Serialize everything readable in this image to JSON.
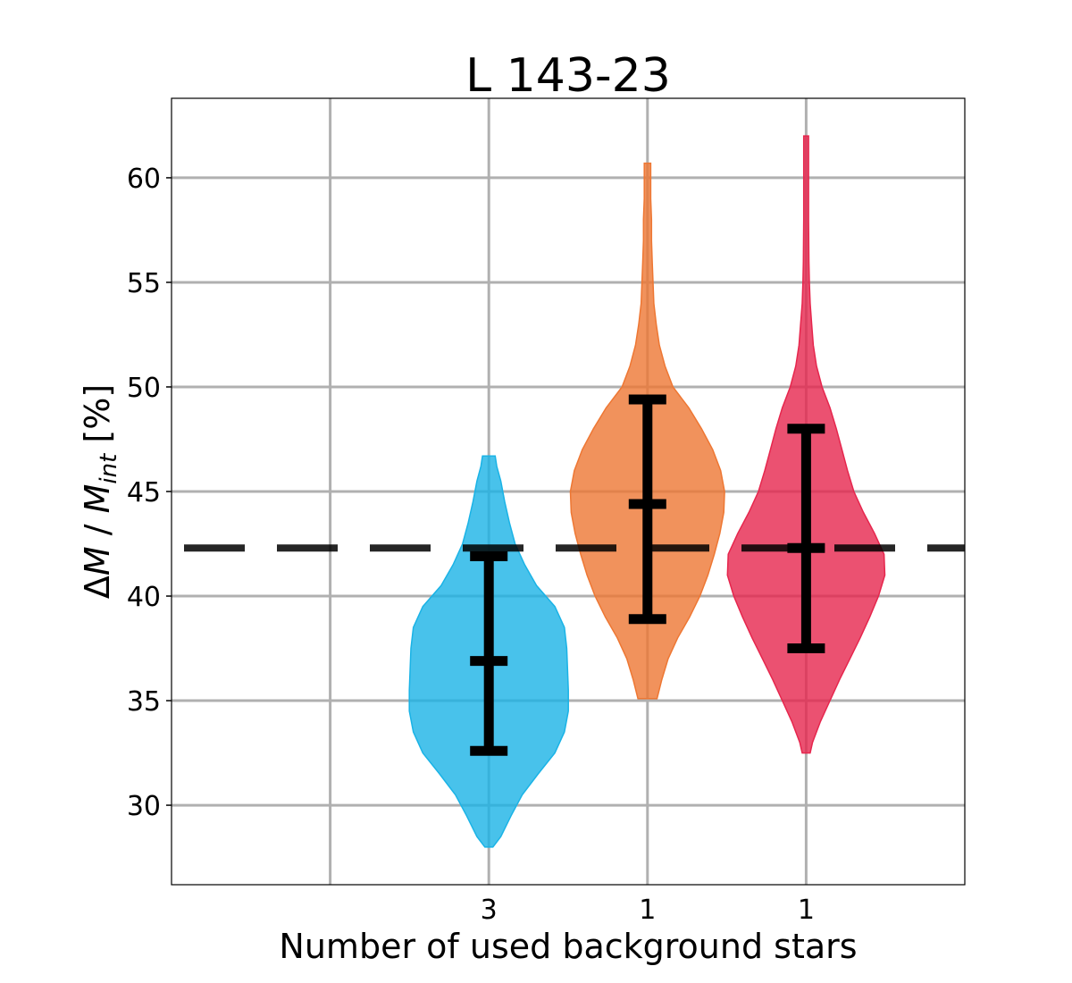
{
  "chart_data": {
    "type": "violin",
    "title": "L 143-23",
    "xlabel": "Number of used background stars",
    "ylabel": {
      "delta": "Δ",
      "M1": "M",
      "slash": " / ",
      "M2": "M",
      "sub": "int",
      "unit": " [%]"
    },
    "ylim": [
      26.2,
      63.8
    ],
    "yticks": [
      30,
      35,
      40,
      45,
      50,
      55,
      60
    ],
    "x_gridlines": [
      1,
      3,
      4
    ],
    "xlim": [
      0,
      5
    ],
    "grid": true,
    "reference_line": {
      "y": 42.3,
      "style": "dashed",
      "color": "#000000"
    },
    "violins": [
      {
        "x": 2,
        "tick_label": "3",
        "color": "#1ab3e6",
        "min": 28.0,
        "max": 46.7,
        "q_low": 32.6,
        "median": 36.9,
        "q_high": 41.9,
        "profile": [
          [
            28.0,
            0.05
          ],
          [
            28.5,
            0.15
          ],
          [
            29.5,
            0.28
          ],
          [
            30.5,
            0.42
          ],
          [
            31.5,
            0.62
          ],
          [
            32.5,
            0.83
          ],
          [
            33.5,
            0.95
          ],
          [
            34.5,
            1.0
          ],
          [
            35.5,
            1.0
          ],
          [
            36.5,
            0.99
          ],
          [
            37.5,
            0.98
          ],
          [
            38.5,
            0.95
          ],
          [
            39.5,
            0.83
          ],
          [
            40.5,
            0.6
          ],
          [
            41.5,
            0.45
          ],
          [
            42.5,
            0.33
          ],
          [
            43.5,
            0.26
          ],
          [
            44.5,
            0.2
          ],
          [
            45.5,
            0.15
          ],
          [
            46.2,
            0.1
          ],
          [
            46.7,
            0.08
          ]
        ]
      },
      {
        "x": 3,
        "tick_label": "1",
        "color": "#ee7733",
        "min": 35.1,
        "max": 60.7,
        "q_low": 38.9,
        "median": 44.4,
        "q_high": 49.4,
        "profile": [
          [
            35.1,
            0.12
          ],
          [
            36.0,
            0.18
          ],
          [
            37.0,
            0.26
          ],
          [
            38.0,
            0.38
          ],
          [
            39.0,
            0.53
          ],
          [
            40.0,
            0.66
          ],
          [
            41.0,
            0.76
          ],
          [
            42.0,
            0.84
          ],
          [
            43.0,
            0.91
          ],
          [
            44.0,
            0.96
          ],
          [
            45.0,
            0.97
          ],
          [
            46.0,
            0.92
          ],
          [
            47.0,
            0.82
          ],
          [
            48.0,
            0.68
          ],
          [
            49.0,
            0.52
          ],
          [
            50.0,
            0.32
          ],
          [
            51.0,
            0.22
          ],
          [
            52.0,
            0.15
          ],
          [
            53.0,
            0.11
          ],
          [
            54.0,
            0.08
          ],
          [
            55.0,
            0.07
          ],
          [
            56.0,
            0.06
          ],
          [
            57.0,
            0.05
          ],
          [
            58.0,
            0.05
          ],
          [
            59.0,
            0.04
          ],
          [
            60.0,
            0.04
          ],
          [
            60.7,
            0.04
          ]
        ]
      },
      {
        "x": 4,
        "tick_label": "1",
        "color": "#e6264d",
        "min": 32.5,
        "max": 62.0,
        "q_low": 37.5,
        "median": 42.3,
        "q_high": 48.0,
        "profile": [
          [
            32.5,
            0.05
          ],
          [
            33.0,
            0.08
          ],
          [
            34.0,
            0.18
          ],
          [
            35.0,
            0.3
          ],
          [
            36.0,
            0.42
          ],
          [
            37.0,
            0.55
          ],
          [
            38.0,
            0.68
          ],
          [
            39.0,
            0.8
          ],
          [
            40.0,
            0.91
          ],
          [
            41.0,
            0.99
          ],
          [
            42.0,
            0.98
          ],
          [
            43.0,
            0.86
          ],
          [
            44.0,
            0.72
          ],
          [
            45.0,
            0.6
          ],
          [
            46.0,
            0.52
          ],
          [
            47.0,
            0.45
          ],
          [
            48.0,
            0.38
          ],
          [
            49.0,
            0.3
          ],
          [
            50.0,
            0.2
          ],
          [
            51.0,
            0.13
          ],
          [
            52.0,
            0.09
          ],
          [
            53.0,
            0.07
          ],
          [
            54.0,
            0.05
          ],
          [
            55.0,
            0.04
          ],
          [
            56.0,
            0.035
          ],
          [
            58.0,
            0.03
          ],
          [
            60.0,
            0.03
          ],
          [
            62.0,
            0.03
          ]
        ]
      }
    ]
  }
}
